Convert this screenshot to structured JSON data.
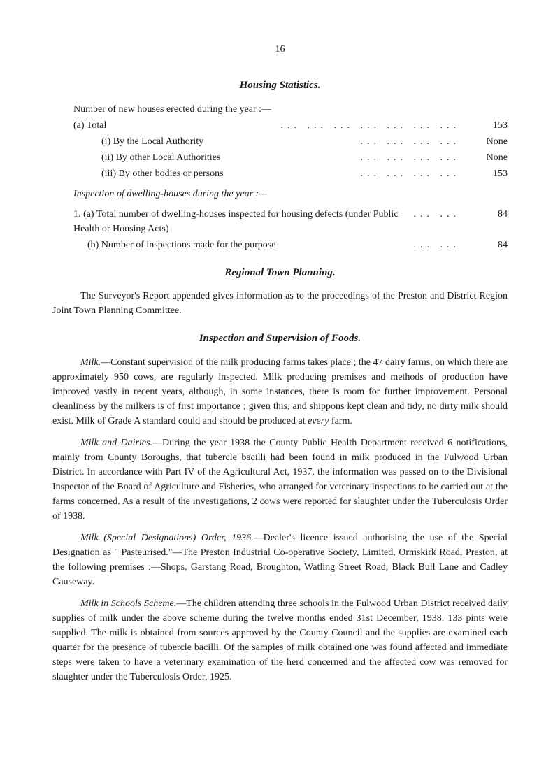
{
  "pageNumber": "16",
  "housingStats": {
    "title": "Housing Statistics.",
    "intro": "Number of new houses erected during the year :—",
    "rows": [
      {
        "label": "(a)   Total",
        "value": "153",
        "indent": 0
      },
      {
        "label": "(i) By the Local Authority",
        "value": "None",
        "indent": 1
      },
      {
        "label": "(ii) By other Local Authorities",
        "value": "None",
        "indent": 1
      },
      {
        "label": "(iii) By other bodies or persons",
        "value": "153",
        "indent": 1
      }
    ],
    "inspectionHeading": "Inspection of dwelling-houses during the year :—",
    "inspectionRows": [
      {
        "label": "1. (a) Total number of dwelling-houses inspected for housing defects (under Public Health or Housing Acts)",
        "value": "84"
      },
      {
        "label": "(b) Number of inspections made for the purpose",
        "value": "84"
      }
    ]
  },
  "regionalPlanning": {
    "title": "Regional Town Planning.",
    "text": "The Surveyor's Report appended gives information as to the proceedings of the Preston and District Region Joint Town Planning Committee."
  },
  "foodInspection": {
    "title": "Inspection and Supervision of Foods.",
    "milk": {
      "lead": "Milk.",
      "text": "—Constant supervision of the milk producing farms takes place ; the 47 dairy farms, on which there are approximately 950 cows, are regularly inspected.   Milk producing premises and methods of production have improved vastly in recent years, although, in some instances, there is room for further improvement.   Personal cleanliness by the milkers is of first importance ; given this, and shippons kept clean and tidy, no dirty milk should exist. Milk of Grade A standard could and should be produced at ",
      "emphasis": "every",
      "textEnd": " farm."
    },
    "dairies": {
      "lead": "Milk and Dairies.",
      "text": "—During the year 1938 the County Public Health Department received 6 notifications, mainly from County Boroughs, that tubercle bacilli had been found in milk produced in the Fulwood Urban District.   In accordance with Part IV of the Agricultural Act, 1937, the information was passed on to the Divisional Inspector of the Board of Agriculture and Fisheries, who arranged for veterinary inspections to be carried out at the farms concerned.   As a result of the investigations, 2 cows were reported for slaughter under the Tuberculosis Order of 1938."
    },
    "designations": {
      "lead": "Milk (Special Designations) Order, 1936.",
      "text": "—Dealer's licence issued authorising the use of the Special Designation as \" Pasteurised.\"—The Preston Industrial Co-operative Society, Limited, Ormskirk Road, Preston, at the following premises :—Shops, Garstang Road, Broughton, Watling Street Road, Black Bull Lane and Cadley Causeway."
    },
    "schools": {
      "lead": "Milk in Schools Scheme.",
      "text": "—The children attending three schools in the Fulwood Urban District received daily supplies of milk under the above scheme during the twelve months ended 31st December, 1938.   133 pints were supplied.   The milk is obtained from sources approved by the County Council and the supplies are examined each quarter for the presence of tubercle bacilli.   Of the samples of milk obtained one was found affected and immediate steps were taken to have a veterinary examination of the herd concerned and the affected cow was removed for slaughter under the Tuberculosis Order, 1925."
    }
  }
}
